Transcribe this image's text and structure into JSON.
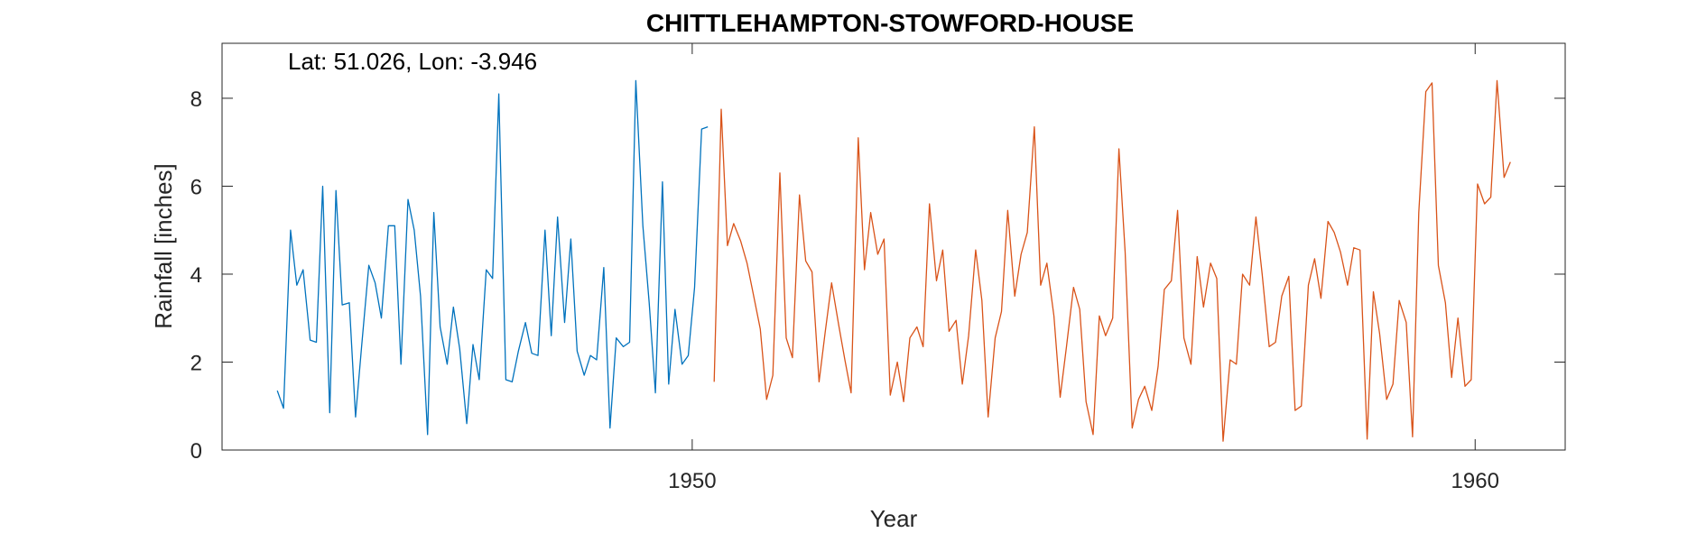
{
  "chart_data": {
    "type": "line",
    "title": "CHITTLEHAMPTON-STOWFORD-HOUSE",
    "annotation": "Lat: 51.026, Lon: -3.946",
    "xlabel": "Year",
    "ylabel": "Rainfall [inches]",
    "xlim": [
      1943.995,
      1961.15
    ],
    "ylim": [
      0,
      9.25
    ],
    "xticks": [
      1950,
      1960
    ],
    "xtick_labels": [
      "1950",
      "1960"
    ],
    "yticks": [
      0,
      2,
      4,
      6,
      8
    ],
    "ytick_labels": [
      "0",
      "2",
      "4",
      "6",
      "8"
    ],
    "grid": false,
    "series": [
      {
        "color": "#0072BD",
        "x": [
          1944.7,
          1944.78,
          1944.87,
          1944.95,
          1945.03,
          1945.12,
          1945.2,
          1945.28,
          1945.37,
          1945.45,
          1945.53,
          1945.62,
          1945.7,
          1945.78,
          1945.87,
          1945.95,
          1946.03,
          1946.12,
          1946.2,
          1946.28,
          1946.37,
          1946.45,
          1946.53,
          1946.62,
          1946.7,
          1946.78,
          1946.87,
          1946.95,
          1947.03,
          1947.12,
          1947.2,
          1947.28,
          1947.37,
          1947.45,
          1947.53,
          1947.62,
          1947.7,
          1947.78,
          1947.87,
          1947.95,
          1948.03,
          1948.12,
          1948.2,
          1948.28,
          1948.37,
          1948.45,
          1948.53,
          1948.62,
          1948.7,
          1948.78,
          1948.87,
          1948.95,
          1949.03,
          1949.12,
          1949.2,
          1949.28,
          1949.37,
          1949.45,
          1949.53,
          1949.62,
          1949.7,
          1949.78,
          1949.87,
          1949.95,
          1950.03,
          1950.12,
          1950.2
        ],
        "y": [
          1.35,
          0.95,
          5.0,
          3.75,
          4.1,
          2.5,
          2.45,
          6.0,
          0.85,
          5.9,
          3.3,
          3.35,
          0.75,
          2.4,
          4.2,
          3.8,
          3.0,
          5.1,
          5.1,
          1.95,
          5.7,
          5.0,
          3.5,
          0.35,
          5.4,
          2.8,
          1.95,
          3.25,
          2.3,
          0.6,
          2.4,
          1.6,
          4.1,
          3.9,
          8.1,
          1.6,
          1.55,
          2.25,
          2.9,
          2.2,
          2.15,
          5.0,
          2.6,
          5.3,
          2.9,
          4.8,
          2.25,
          1.7,
          2.15,
          2.05,
          4.15,
          0.5,
          2.55,
          2.35,
          2.45,
          8.4,
          5.1,
          3.35,
          1.3,
          6.1,
          1.5,
          3.2,
          1.95,
          2.15,
          3.7,
          7.3,
          7.35
        ]
      },
      {
        "color": "#D95319",
        "x": [
          1950.28,
          1950.37,
          1950.45,
          1950.53,
          1950.62,
          1950.7,
          1950.78,
          1950.87,
          1950.95,
          1951.03,
          1951.12,
          1951.2,
          1951.28,
          1951.37,
          1951.45,
          1951.53,
          1951.62,
          1951.7,
          1951.78,
          1951.87,
          1951.95,
          1952.03,
          1952.12,
          1952.2,
          1952.28,
          1952.37,
          1952.45,
          1952.53,
          1952.62,
          1952.7,
          1952.78,
          1952.87,
          1952.95,
          1953.03,
          1953.12,
          1953.2,
          1953.28,
          1953.37,
          1953.45,
          1953.53,
          1953.62,
          1953.7,
          1953.78,
          1953.87,
          1953.95,
          1954.03,
          1954.12,
          1954.2,
          1954.28,
          1954.37,
          1954.45,
          1954.53,
          1954.62,
          1954.7,
          1954.78,
          1954.87,
          1954.95,
          1955.03,
          1955.12,
          1955.2,
          1955.28,
          1955.37,
          1955.45,
          1955.53,
          1955.62,
          1955.7,
          1955.78,
          1955.87,
          1955.95,
          1956.03,
          1956.12,
          1956.2,
          1956.28,
          1956.37,
          1956.45,
          1956.53,
          1956.62,
          1956.7,
          1956.78,
          1956.87,
          1956.95,
          1957.03,
          1957.12,
          1957.2,
          1957.28,
          1957.37,
          1957.45,
          1957.53,
          1957.62,
          1957.7,
          1957.78,
          1957.87,
          1957.95,
          1958.03,
          1958.12,
          1958.2,
          1958.28,
          1958.37,
          1958.45,
          1958.53,
          1958.62,
          1958.7,
          1958.78,
          1958.87,
          1958.95,
          1959.03,
          1959.12,
          1959.2,
          1959.28,
          1959.37,
          1959.45,
          1959.53,
          1959.62,
          1959.7,
          1959.78,
          1959.87,
          1959.95,
          1960.03,
          1960.12,
          1960.2,
          1960.28,
          1960.37,
          1960.45
        ],
        "y": [
          1.55,
          7.75,
          4.65,
          5.15,
          4.75,
          4.25,
          3.55,
          2.75,
          1.15,
          1.7,
          6.3,
          2.55,
          2.1,
          5.8,
          4.3,
          4.05,
          1.55,
          2.7,
          3.8,
          2.85,
          2.05,
          1.3,
          7.1,
          4.1,
          5.4,
          4.45,
          4.8,
          1.25,
          2.0,
          1.1,
          2.55,
          2.8,
          2.35,
          5.6,
          3.85,
          4.55,
          2.7,
          2.95,
          1.5,
          2.6,
          4.55,
          3.4,
          0.75,
          2.55,
          3.15,
          5.45,
          3.5,
          4.45,
          4.95,
          7.35,
          3.75,
          4.25,
          3.05,
          1.2,
          2.35,
          3.7,
          3.2,
          1.1,
          0.35,
          3.05,
          2.6,
          3.0,
          6.85,
          4.5,
          0.5,
          1.15,
          1.45,
          0.9,
          1.9,
          3.65,
          3.85,
          5.45,
          2.55,
          1.95,
          4.4,
          3.25,
          4.25,
          3.9,
          0.2,
          2.05,
          1.95,
          4.0,
          3.75,
          5.3,
          4.0,
          2.35,
          2.45,
          3.5,
          3.95,
          0.9,
          1.0,
          3.75,
          4.35,
          3.45,
          5.2,
          4.95,
          4.5,
          3.75,
          4.6,
          4.55,
          0.25,
          3.6,
          2.65,
          1.15,
          1.5,
          3.4,
          2.9,
          0.3,
          5.4,
          8.15,
          8.35,
          4.2,
          3.35,
          1.65,
          3.0,
          1.45,
          1.6,
          6.05,
          5.6,
          5.75,
          8.4,
          6.2,
          6.55
        ]
      }
    ]
  }
}
